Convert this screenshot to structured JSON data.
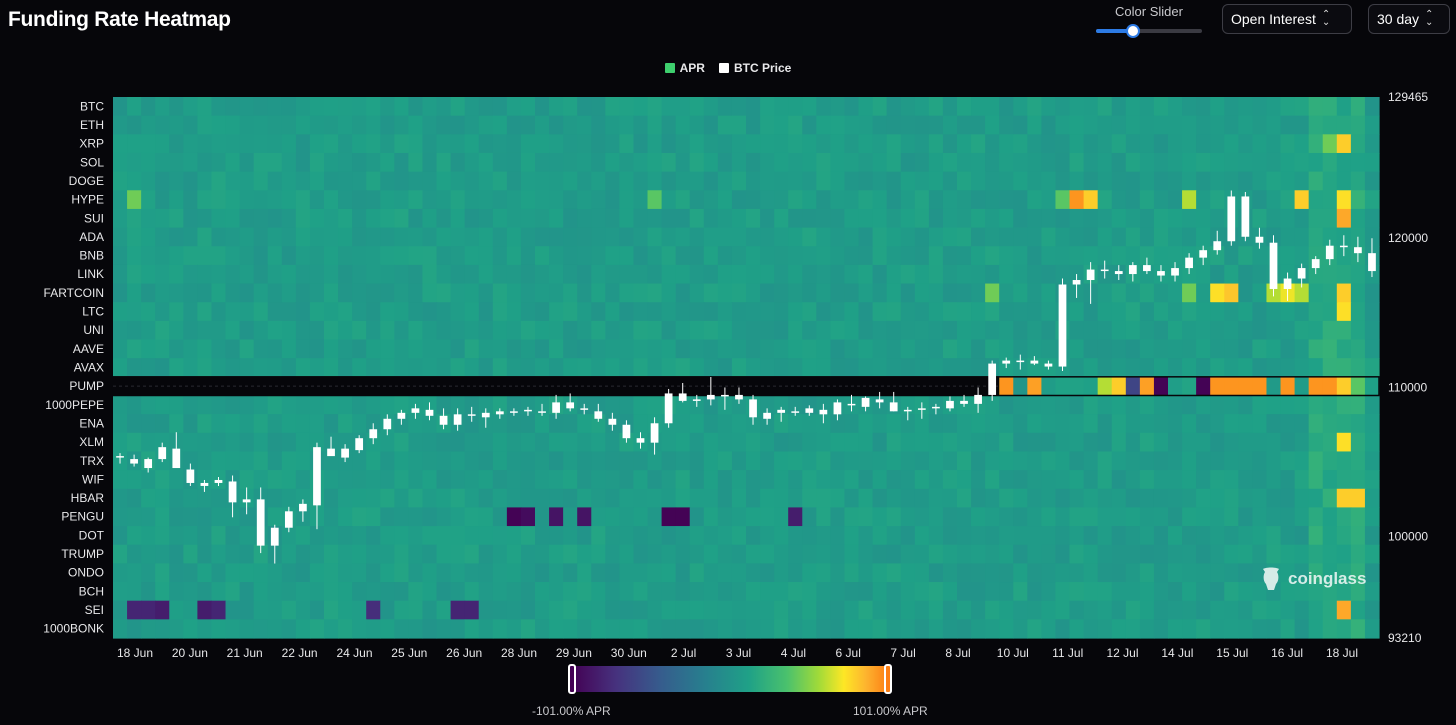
{
  "header": {
    "title": "Funding Rate Heatmap",
    "slider_label": "Color Slider",
    "slider_value": 0.35,
    "metric_select": "Open Interest",
    "range_select": "30 day"
  },
  "colors": {
    "background": "#06060a",
    "apr_legend": "#3ecf6e",
    "price_legend": "#ffffff",
    "accent": "#2d7be5",
    "scale_low": "#440154",
    "scale_mid": "#21a685",
    "scale_high": "#fd7e14"
  },
  "icons": {
    "watermark": "coinglass-logo-icon",
    "chevron": "chevron-updown-icon"
  },
  "chart_data": {
    "type": "heatmap",
    "title": "Funding Rate Heatmap",
    "legend": [
      {
        "name": "APR",
        "color": "#3ecf6e"
      },
      {
        "name": "BTC Price",
        "color": "#ffffff"
      }
    ],
    "legend_position": "top-center",
    "coins": [
      "BTC",
      "ETH",
      "XRP",
      "SOL",
      "DOGE",
      "HYPE",
      "SUI",
      "ADA",
      "BNB",
      "LINK",
      "FARTCOIN",
      "LTC",
      "UNI",
      "AAVE",
      "AVAX",
      "PUMP",
      "1000PEPE",
      "ENA",
      "XLM",
      "TRX",
      "WIF",
      "HBAR",
      "PENGU",
      "DOT",
      "TRUMP",
      "ONDO",
      "BCH",
      "SEI",
      "1000BONK"
    ],
    "x_labels": [
      "18 Jun",
      "20 Jun",
      "21 Jun",
      "22 Jun",
      "24 Jun",
      "25 Jun",
      "26 Jun",
      "28 Jun",
      "29 Jun",
      "30 Jun",
      "2 Jul",
      "3 Jul",
      "4 Jul",
      "6 Jul",
      "7 Jul",
      "8 Jul",
      "10 Jul",
      "11 Jul",
      "12 Jul",
      "14 Jul",
      "15 Jul",
      "16 Jul",
      "18 Jul"
    ],
    "periods": 90,
    "period_hours": 8,
    "y_right_ticks": [
      129465,
      120000,
      110000,
      100000,
      93210
    ],
    "y_right_range": [
      93210,
      129465
    ],
    "apr_scale": {
      "min": -101.0,
      "max": 101.0,
      "min_label": "-101.00% APR",
      "max_label": "101.00% APR"
    },
    "hot_cells": [
      {
        "coin": "HYPE",
        "period": 1,
        "apr": 45
      },
      {
        "coin": "HYPE",
        "period": 38,
        "apr": 40
      },
      {
        "coin": "HYPE",
        "period": 67,
        "apr": 40
      },
      {
        "coin": "HYPE",
        "period": 68,
        "apr": 95
      },
      {
        "coin": "HYPE",
        "period": 69,
        "apr": 80
      },
      {
        "coin": "HYPE",
        "period": 76,
        "apr": 60
      },
      {
        "coin": "HYPE",
        "period": 84,
        "apr": 80
      },
      {
        "coin": "HYPE",
        "period": 87,
        "apr": 75
      },
      {
        "coin": "XRP",
        "period": 86,
        "apr": 45
      },
      {
        "coin": "XRP",
        "period": 87,
        "apr": 80
      },
      {
        "coin": "SUI",
        "period": 87,
        "apr": 90
      },
      {
        "coin": "FARTCOIN",
        "period": 62,
        "apr": 45
      },
      {
        "coin": "FARTCOIN",
        "period": 76,
        "apr": 45
      },
      {
        "coin": "FARTCOIN",
        "period": 78,
        "apr": 75
      },
      {
        "coin": "FARTCOIN",
        "period": 79,
        "apr": 82
      },
      {
        "coin": "FARTCOIN",
        "period": 82,
        "apr": 60
      },
      {
        "coin": "FARTCOIN",
        "period": 83,
        "apr": 70
      },
      {
        "coin": "FARTCOIN",
        "period": 84,
        "apr": 60
      },
      {
        "coin": "FARTCOIN",
        "period": 87,
        "apr": 80
      },
      {
        "coin": "LTC",
        "period": 87,
        "apr": 75
      },
      {
        "coin": "PUMP",
        "period": 63,
        "apr": 95
      },
      {
        "coin": "PUMP",
        "period": 65,
        "apr": 92
      },
      {
        "coin": "PUMP",
        "period": 70,
        "apr": 60
      },
      {
        "coin": "PUMP",
        "period": 71,
        "apr": 80
      },
      {
        "coin": "PUMP",
        "period": 72,
        "apr": -60
      },
      {
        "coin": "PUMP",
        "period": 73,
        "apr": 92
      },
      {
        "coin": "PUMP",
        "period": 74,
        "apr": -100
      },
      {
        "coin": "PUMP",
        "period": 77,
        "apr": -100
      },
      {
        "coin": "PUMP",
        "period": 78,
        "apr": 95
      },
      {
        "coin": "PUMP",
        "period": 79,
        "apr": 95
      },
      {
        "coin": "PUMP",
        "period": 80,
        "apr": 95
      },
      {
        "coin": "PUMP",
        "period": 81,
        "apr": 95
      },
      {
        "coin": "PUMP",
        "period": 83,
        "apr": 95
      },
      {
        "coin": "PUMP",
        "period": 85,
        "apr": 95
      },
      {
        "coin": "PUMP",
        "period": 86,
        "apr": 95
      },
      {
        "coin": "PUMP",
        "period": 87,
        "apr": 80
      },
      {
        "coin": "PUMP",
        "period": 88,
        "apr": 40
      },
      {
        "coin": "XLM",
        "period": 87,
        "apr": 75
      },
      {
        "coin": "HBAR",
        "period": 87,
        "apr": 80
      },
      {
        "coin": "HBAR",
        "period": 88,
        "apr": 80
      },
      {
        "coin": "SEI",
        "period": 87,
        "apr": 90
      },
      {
        "coin": "PENGU",
        "period": 28,
        "apr": -100
      },
      {
        "coin": "PENGU",
        "period": 29,
        "apr": -95
      },
      {
        "coin": "PENGU",
        "period": 31,
        "apr": -90
      },
      {
        "coin": "PENGU",
        "period": 33,
        "apr": -90
      },
      {
        "coin": "PENGU",
        "period": 39,
        "apr": -100
      },
      {
        "coin": "PENGU",
        "period": 40,
        "apr": -100
      },
      {
        "coin": "PENGU",
        "period": 48,
        "apr": -85
      },
      {
        "coin": "SEI",
        "period": 1,
        "apr": -80
      },
      {
        "coin": "SEI",
        "period": 2,
        "apr": -80
      },
      {
        "coin": "SEI",
        "period": 3,
        "apr": -85
      },
      {
        "coin": "SEI",
        "period": 6,
        "apr": -85
      },
      {
        "coin": "SEI",
        "period": 7,
        "apr": -80
      },
      {
        "coin": "SEI",
        "period": 18,
        "apr": -75
      },
      {
        "coin": "SEI",
        "period": 24,
        "apr": -80
      },
      {
        "coin": "SEI",
        "period": 25,
        "apr": -80
      }
    ],
    "btc_candles": [
      [
        105300,
        105600,
        104900,
        105400
      ],
      [
        105200,
        105500,
        104700,
        104900
      ],
      [
        104600,
        105300,
        104300,
        105200
      ],
      [
        105200,
        106300,
        105000,
        106000
      ],
      [
        105900,
        107000,
        104800,
        104600
      ],
      [
        104500,
        104900,
        103400,
        103600
      ],
      [
        103400,
        103800,
        103000,
        103600
      ],
      [
        103600,
        104000,
        103400,
        103800
      ],
      [
        103700,
        104100,
        101300,
        102300
      ],
      [
        102300,
        103300,
        101500,
        102500
      ],
      [
        102500,
        103300,
        98900,
        99400
      ],
      [
        99400,
        100800,
        98200,
        100600
      ],
      [
        100600,
        102000,
        100300,
        101700
      ],
      [
        101700,
        102500,
        101000,
        102200
      ],
      [
        102100,
        106300,
        100500,
        106000
      ],
      [
        105900,
        106700,
        105500,
        105400
      ],
      [
        105300,
        106200,
        105000,
        105900
      ],
      [
        105800,
        106800,
        105600,
        106600
      ],
      [
        106600,
        107600,
        106200,
        107200
      ],
      [
        107200,
        108200,
        106800,
        107900
      ],
      [
        107900,
        108500,
        107500,
        108300
      ],
      [
        108300,
        108900,
        107900,
        108600
      ],
      [
        108500,
        109000,
        107800,
        108100
      ],
      [
        108100,
        108600,
        107200,
        107500
      ],
      [
        107500,
        108600,
        107100,
        108200
      ],
      [
        108200,
        108700,
        107700,
        108100
      ],
      [
        108000,
        108600,
        107300,
        108300
      ],
      [
        108200,
        108600,
        107900,
        108400
      ],
      [
        108400,
        108600,
        108100,
        108400
      ],
      [
        108400,
        108700,
        108100,
        108500
      ],
      [
        108400,
        108900,
        108100,
        108300
      ],
      [
        108300,
        109500,
        107900,
        109000
      ],
      [
        109000,
        109600,
        108400,
        108600
      ],
      [
        108600,
        108900,
        108200,
        108500
      ],
      [
        108400,
        108900,
        107700,
        107900
      ],
      [
        107900,
        108300,
        107100,
        107500
      ],
      [
        107500,
        107800,
        106300,
        106600
      ],
      [
        106600,
        107000,
        105900,
        106300
      ],
      [
        106300,
        108000,
        105500,
        107600
      ],
      [
        107600,
        109900,
        107300,
        109600
      ],
      [
        109600,
        110300,
        109000,
        109100
      ],
      [
        109100,
        109500,
        108700,
        109200
      ],
      [
        109200,
        110700,
        108800,
        109500
      ],
      [
        109500,
        110000,
        108500,
        109500
      ],
      [
        109500,
        110000,
        108900,
        109200
      ],
      [
        109200,
        109500,
        107500,
        108000
      ],
      [
        107900,
        108600,
        107500,
        108300
      ],
      [
        108300,
        108700,
        107700,
        108500
      ],
      [
        108400,
        108700,
        108100,
        108400
      ],
      [
        108300,
        108800,
        108100,
        108600
      ],
      [
        108500,
        108900,
        107600,
        108200
      ],
      [
        108200,
        109200,
        107800,
        109000
      ],
      [
        108900,
        109500,
        108400,
        108800
      ],
      [
        108700,
        109400,
        108400,
        109300
      ],
      [
        109200,
        109700,
        108600,
        109000
      ],
      [
        109000,
        109700,
        108400,
        108400
      ],
      [
        108400,
        108700,
        107800,
        108500
      ],
      [
        108500,
        109000,
        107900,
        108600
      ],
      [
        108600,
        108900,
        108200,
        108700
      ],
      [
        108600,
        109400,
        108400,
        109100
      ],
      [
        109100,
        109500,
        108700,
        108900
      ],
      [
        108900,
        110000,
        108300,
        109500
      ],
      [
        109500,
        111800,
        109100,
        111600
      ],
      [
        111600,
        112000,
        111300,
        111800
      ],
      [
        111700,
        112200,
        111200,
        111800
      ],
      [
        111800,
        112100,
        111500,
        111600
      ],
      [
        111600,
        111800,
        111200,
        111400
      ],
      [
        111400,
        117300,
        111100,
        116900
      ],
      [
        116900,
        117600,
        116000,
        117200
      ],
      [
        117200,
        118400,
        115600,
        117900
      ],
      [
        117900,
        118500,
        117300,
        117800
      ],
      [
        117800,
        118200,
        117200,
        117600
      ],
      [
        117600,
        118400,
        117100,
        118200
      ],
      [
        118200,
        118700,
        117600,
        117800
      ],
      [
        117800,
        118200,
        117100,
        117500
      ],
      [
        117500,
        118400,
        117100,
        118000
      ],
      [
        118000,
        119000,
        117600,
        118700
      ],
      [
        118700,
        119500,
        118200,
        119200
      ],
      [
        119200,
        120500,
        118900,
        119800
      ],
      [
        119800,
        123200,
        119500,
        122800
      ],
      [
        122800,
        123100,
        119800,
        120100
      ],
      [
        120100,
        120700,
        119300,
        119700
      ],
      [
        119700,
        120200,
        116100,
        116600
      ],
      [
        116600,
        117700,
        115800,
        117300
      ],
      [
        117300,
        118300,
        116700,
        118000
      ],
      [
        118000,
        118800,
        117600,
        118600
      ],
      [
        118600,
        119900,
        118200,
        119500
      ],
      [
        119500,
        120200,
        118800,
        119400
      ],
      [
        119400,
        120100,
        118400,
        119000
      ],
      [
        119000,
        120000,
        117400,
        117800
      ]
    ]
  },
  "watermark": {
    "text": "coinglass"
  }
}
